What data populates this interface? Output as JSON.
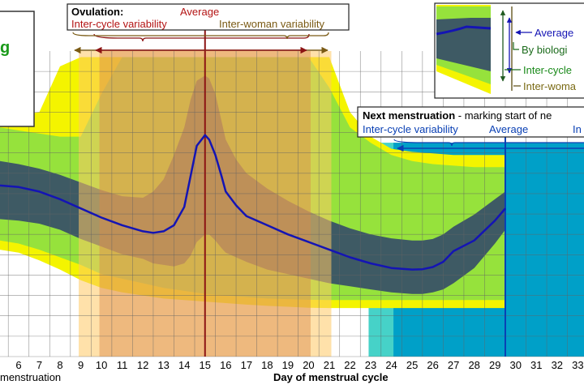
{
  "chart_data": {
    "type": "area",
    "title": "",
    "xlabel": "Day of menstrual cycle",
    "xlabel_left": "menstruation",
    "ylabel": "",
    "x_ticks": [
      6,
      7,
      8,
      9,
      10,
      11,
      12,
      13,
      14,
      15,
      16,
      17,
      18,
      19,
      20,
      21,
      22,
      23,
      24,
      25,
      26,
      27,
      28,
      29,
      30,
      31,
      32,
      33
    ],
    "xlim": [
      5.1,
      33.3
    ],
    "grid": true,
    "ovulation": {
      "heading": "Ovulation:",
      "average_label": "Average",
      "inter_cycle_label": "Inter-cycle variability",
      "inter_woman_label": "Inter-woman variability",
      "average_day": 15,
      "inter_cycle_range": [
        9.9,
        20.1
      ],
      "inter_woman_range": [
        8.9,
        21.1
      ]
    },
    "next_menstruation": {
      "heading": "Next menstruation",
      "heading_suffix": " - marking start of ne",
      "inter_cycle_label": "Inter-cycle variability",
      "average_label": "Average",
      "inter_woman_label_partial": "In",
      "average_day": 29.5,
      "inter_cycle_start": 24.1,
      "inter_woman_start": 22.9
    },
    "legend": {
      "placement": "top-right",
      "average": "Average",
      "biological": "By biologi",
      "inter_cycle": "Inter-cycle",
      "inter_woman": "Inter-woma"
    },
    "left_panel_text": "g",
    "series": [
      {
        "name": "Average",
        "x": [
          5.1,
          6,
          7,
          8,
          9,
          10,
          11,
          12,
          12.5,
          13,
          13.5,
          14,
          14.3,
          14.6,
          15,
          15.2,
          15.5,
          15.8,
          16,
          16.5,
          17,
          18,
          19,
          20,
          21,
          22,
          23,
          24,
          25,
          25.5,
          26,
          26.5,
          27,
          28,
          29,
          29.5
        ],
        "y": [
          56,
          55.5,
          54,
          51.5,
          48.5,
          45.5,
          43,
          41,
          40.5,
          41,
          43,
          49,
          59,
          69,
          72.5,
          71,
          66,
          59,
          54,
          49.5,
          46,
          43,
          40,
          37.5,
          35,
          32.5,
          30.5,
          29,
          28.5,
          28.6,
          29.3,
          31,
          34.5,
          38,
          44.5,
          48.5
        ]
      },
      {
        "name": "By biological variability",
        "upper": [
          64,
          63,
          61.5,
          59.5,
          57,
          54.5,
          52.5,
          52,
          54,
          58,
          66,
          75,
          84,
          90.3,
          92,
          91,
          86,
          77,
          71,
          64.5,
          60,
          55,
          51,
          47.5,
          44.5,
          42,
          40,
          38.7,
          38,
          38,
          38.5,
          40,
          42.5,
          46.5,
          51.5,
          54
        ],
        "lower": [
          45,
          44.5,
          43.5,
          41.5,
          38.5,
          36,
          33.5,
          32,
          30.5,
          30,
          29.5,
          30.5,
          33,
          37.5,
          40,
          40,
          38,
          35.5,
          34,
          32.5,
          31,
          28.5,
          27,
          25.5,
          24,
          23,
          22,
          21,
          20.5,
          20.5,
          21,
          22,
          24,
          29,
          37,
          41.5
        ]
      }
    ],
    "inter_cycle_area": {
      "x": [
        5.1,
        6,
        7,
        8,
        9,
        10,
        11,
        12,
        13,
        14,
        15,
        16,
        17,
        18,
        19,
        20,
        21,
        22,
        23,
        24,
        25,
        26,
        27,
        28,
        29,
        29.5
      ],
      "upper": [
        75,
        74,
        73,
        72,
        72,
        86,
        98,
        98,
        98,
        98,
        98,
        98,
        98,
        98,
        98,
        98,
        88,
        75,
        70,
        66,
        64,
        63,
        62.5,
        62,
        62,
        62
      ],
      "lower": [
        38,
        37,
        35,
        32.5,
        30,
        27,
        25.5,
        24,
        22.5,
        21.5,
        20.5,
        20,
        19.5,
        19,
        18.8,
        18.6,
        18.5,
        18.5,
        18.5,
        18.5,
        18.5,
        18.5,
        18.5,
        18.5,
        18.5,
        18.5
      ]
    },
    "inter_woman_area": {
      "x": [
        5.1,
        6,
        7,
        8,
        9,
        10,
        11,
        12,
        13,
        14,
        15,
        16,
        17,
        18,
        19,
        20,
        21,
        22,
        23,
        24,
        25,
        26,
        27,
        28,
        29,
        29.5
      ],
      "upper": [
        80,
        79,
        80,
        95,
        98,
        98,
        98,
        98,
        98,
        98,
        98,
        98,
        98,
        98,
        98,
        98,
        98,
        80,
        72,
        68,
        67,
        66.5,
        66,
        66,
        66,
        66
      ],
      "lower": [
        35,
        34,
        31.5,
        28.5,
        25,
        22.5,
        21,
        20,
        19,
        18.5,
        18,
        17.5,
        17,
        16.6,
        16.3,
        16,
        15.9,
        15.9,
        15.9,
        15.9,
        15.9,
        15.9,
        15.9,
        15.9,
        15.9,
        15.9
      ]
    },
    "colors": {
      "inter_woman": "#f4f400",
      "inter_cycle": "#96e23c",
      "biological": "#3e5a64",
      "average": "#1414b4",
      "ovulation_inter_woman": "#ffc864",
      "ovulation_inter_cycle": "#d98a4a",
      "ovulation_average": "#8c1414",
      "menstruation_inter_woman": "#46d2c8",
      "menstruation_inter_cycle": "#00a0c8",
      "menstruation_average": "#0a40b4",
      "grid": "#646464"
    }
  }
}
